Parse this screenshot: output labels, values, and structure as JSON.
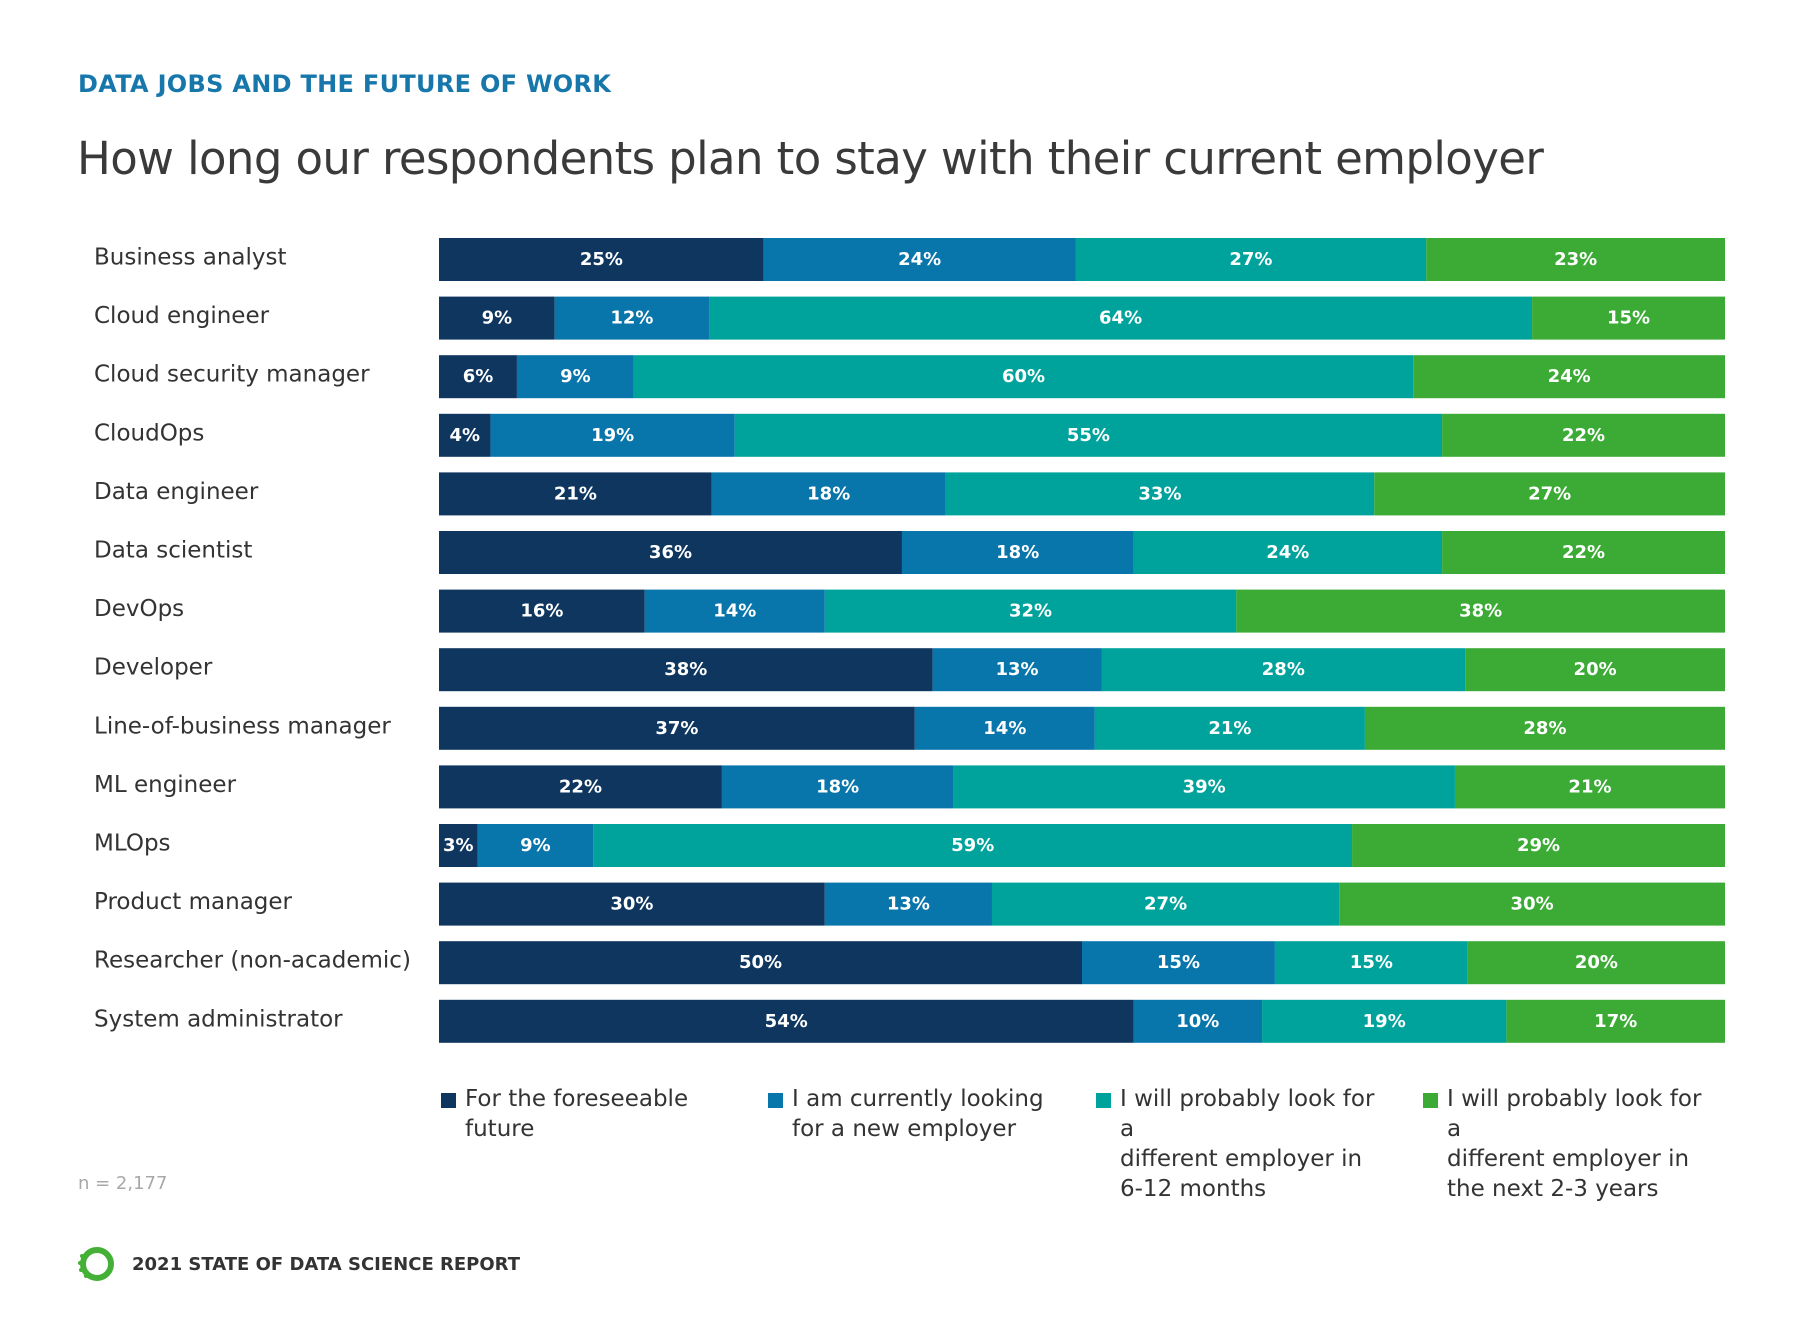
{
  "header": {
    "kicker": "DATA JOBS AND THE FUTURE OF WORK",
    "title": "How long our respondents plan to stay with their current employer"
  },
  "note": "n = 2,177",
  "footer": {
    "report_title": "2021 STATE OF DATA SCIENCE REPORT",
    "logo_icon": "anaconda-ring-logo-icon"
  },
  "chart_data": {
    "type": "bar",
    "orientation": "horizontal",
    "stacked": true,
    "xlim": [
      0,
      100
    ],
    "grid": false,
    "legend_position": "bottom",
    "categories": [
      "Business analyst",
      "Cloud engineer",
      "Cloud security manager",
      "CloudOps",
      "Data engineer",
      "Data scientist",
      "DevOps",
      "Developer",
      "Line-of-business manager",
      "ML engineer",
      "MLOps",
      "Product manager",
      "Researcher (non-academic)",
      "System administrator"
    ],
    "series": [
      {
        "name": "For the foreseeable future",
        "legend_lines": [
          "For the foreseeable",
          "future"
        ],
        "color": "#0e365f",
        "values": [
          25,
          9,
          6,
          4,
          21,
          36,
          16,
          38,
          37,
          22,
          3,
          30,
          50,
          54
        ]
      },
      {
        "name": "I am currently looking for a new employer",
        "legend_lines": [
          "I am currently looking",
          "for a new employer"
        ],
        "color": "#0875ab",
        "values": [
          24,
          12,
          9,
          19,
          18,
          18,
          14,
          13,
          14,
          18,
          9,
          13,
          15,
          10
        ]
      },
      {
        "name": "I will probably look for a different employer in 6-12 months",
        "legend_lines": [
          "I will probably look for a",
          "different employer in",
          "6-12 months"
        ],
        "color": "#00a39b",
        "values": [
          27,
          64,
          60,
          55,
          33,
          24,
          32,
          28,
          21,
          39,
          59,
          27,
          15,
          19
        ]
      },
      {
        "name": "I will probably look for a different employer in the next 2-3 years",
        "legend_lines": [
          "I will probably look for a",
          "different employer in",
          "the next 2-3 years"
        ],
        "color": "#3bab35",
        "values": [
          23,
          15,
          24,
          22,
          27,
          22,
          38,
          20,
          28,
          21,
          29,
          30,
          20,
          17
        ]
      }
    ]
  }
}
